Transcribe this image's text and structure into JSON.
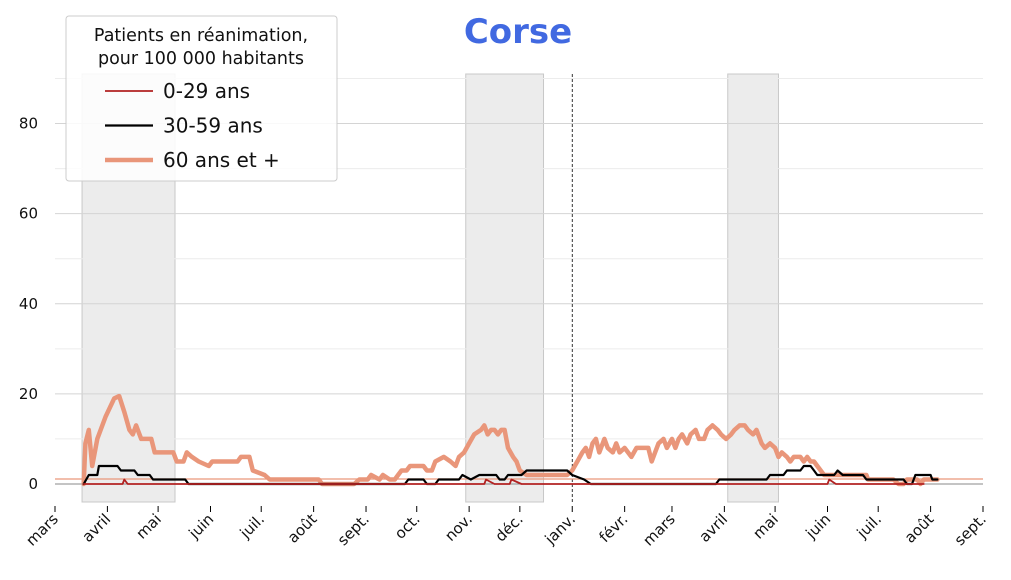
{
  "chart_data": {
    "type": "line",
    "title": "Corse",
    "title_color": "#4169e1",
    "xlabel": "",
    "ylabel": "",
    "x_range": [
      "2020-03-01",
      "2021-09-01"
    ],
    "ylim": [
      -4,
      91
    ],
    "y_ticks": [
      0,
      20,
      40,
      60,
      80
    ],
    "x_ticks": [
      {
        "date": "2020-03-01",
        "label": "mars"
      },
      {
        "date": "2020-04-01",
        "label": "avril"
      },
      {
        "date": "2020-05-01",
        "label": "mai"
      },
      {
        "date": "2020-06-01",
        "label": "juin"
      },
      {
        "date": "2020-07-01",
        "label": "juil."
      },
      {
        "date": "2020-08-01",
        "label": "août"
      },
      {
        "date": "2020-09-01",
        "label": "sept."
      },
      {
        "date": "2020-10-01",
        "label": "oct."
      },
      {
        "date": "2020-11-01",
        "label": "nov."
      },
      {
        "date": "2020-12-01",
        "label": "déc."
      },
      {
        "date": "2021-01-01",
        "label": "janv."
      },
      {
        "date": "2021-02-01",
        "label": "févr."
      },
      {
        "date": "2021-03-01",
        "label": "mars"
      },
      {
        "date": "2021-04-01",
        "label": "avril"
      },
      {
        "date": "2021-05-01",
        "label": "mai"
      },
      {
        "date": "2021-06-01",
        "label": "juin"
      },
      {
        "date": "2021-07-01",
        "label": "juil."
      },
      {
        "date": "2021-08-01",
        "label": "août"
      },
      {
        "date": "2021-09-01",
        "label": "sept."
      }
    ],
    "grid": true,
    "legend": {
      "title": "Patients en réanimation,\npour 100 000 habitants",
      "placement": "top-left"
    },
    "shaded_periods": [
      {
        "start": "2020-03-17",
        "end": "2020-05-11"
      },
      {
        "start": "2020-10-30",
        "end": "2020-12-15"
      },
      {
        "start": "2021-04-03",
        "end": "2021-05-03"
      }
    ],
    "vertical_marker": "2021-01-01",
    "reference_line": {
      "y": 1.1,
      "color": "#e9967a"
    },
    "series": [
      {
        "name": "0-29 ans",
        "color": "#b22222",
        "points": [
          [
            "2020-03-18",
            0
          ],
          [
            "2020-04-10",
            0
          ],
          [
            "2020-04-11",
            1
          ],
          [
            "2020-04-13",
            0
          ],
          [
            "2020-05-01",
            0
          ],
          [
            "2020-06-15",
            0
          ],
          [
            "2020-08-15",
            0
          ],
          [
            "2020-10-01",
            0
          ],
          [
            "2020-11-10",
            0
          ],
          [
            "2020-11-11",
            1
          ],
          [
            "2020-11-16",
            0
          ],
          [
            "2020-11-25",
            0
          ],
          [
            "2020-11-26",
            1
          ],
          [
            "2020-12-02",
            0
          ],
          [
            "2021-01-01",
            0
          ],
          [
            "2021-02-15",
            0
          ],
          [
            "2021-04-01",
            0
          ],
          [
            "2021-06-01",
            0
          ],
          [
            "2021-06-02",
            1
          ],
          [
            "2021-06-06",
            0
          ],
          [
            "2021-07-28",
            0
          ]
        ]
      },
      {
        "name": "30-59 ans",
        "color": "#000000",
        "points": [
          [
            "2020-03-18",
            0
          ],
          [
            "2020-03-21",
            2
          ],
          [
            "2020-03-26",
            2
          ],
          [
            "2020-03-27",
            4
          ],
          [
            "2020-04-07",
            4
          ],
          [
            "2020-04-09",
            3
          ],
          [
            "2020-04-17",
            3
          ],
          [
            "2020-04-19",
            2
          ],
          [
            "2020-04-26",
            2
          ],
          [
            "2020-04-28",
            1
          ],
          [
            "2020-05-17",
            1
          ],
          [
            "2020-05-19",
            0
          ],
          [
            "2020-09-24",
            0
          ],
          [
            "2020-09-26",
            1
          ],
          [
            "2020-10-05",
            1
          ],
          [
            "2020-10-07",
            0
          ],
          [
            "2020-10-12",
            0
          ],
          [
            "2020-10-14",
            1
          ],
          [
            "2020-10-26",
            1
          ],
          [
            "2020-10-28",
            2
          ],
          [
            "2020-11-02",
            1
          ],
          [
            "2020-11-07",
            2
          ],
          [
            "2020-11-17",
            2
          ],
          [
            "2020-11-19",
            1
          ],
          [
            "2020-11-22",
            1
          ],
          [
            "2020-11-24",
            2
          ],
          [
            "2020-12-02",
            2
          ],
          [
            "2020-12-05",
            3
          ],
          [
            "2020-12-29",
            3
          ],
          [
            "2021-01-01",
            2
          ],
          [
            "2021-01-08",
            1
          ],
          [
            "2021-01-12",
            0
          ],
          [
            "2021-03-27",
            0
          ],
          [
            "2021-03-29",
            1
          ],
          [
            "2021-04-26",
            1
          ],
          [
            "2021-04-28",
            2
          ],
          [
            "2021-05-06",
            2
          ],
          [
            "2021-05-08",
            3
          ],
          [
            "2021-05-16",
            3
          ],
          [
            "2021-05-18",
            4
          ],
          [
            "2021-05-22",
            4
          ],
          [
            "2021-05-24",
            3
          ],
          [
            "2021-05-26",
            2
          ],
          [
            "2021-06-05",
            2
          ],
          [
            "2021-06-07",
            3
          ],
          [
            "2021-06-10",
            2
          ],
          [
            "2021-06-22",
            2
          ],
          [
            "2021-06-24",
            1
          ],
          [
            "2021-07-16",
            1
          ],
          [
            "2021-07-18",
            0
          ],
          [
            "2021-07-21",
            0
          ],
          [
            "2021-07-23",
            2
          ],
          [
            "2021-08-01",
            2
          ],
          [
            "2021-08-02",
            1
          ],
          [
            "2021-08-05",
            1
          ]
        ]
      },
      {
        "name": "60 ans et +",
        "color": "#e9967a",
        "points": [
          [
            "2020-03-18",
            0
          ],
          [
            "2020-03-19",
            9
          ],
          [
            "2020-03-21",
            12
          ],
          [
            "2020-03-23",
            4
          ],
          [
            "2020-03-26",
            10
          ],
          [
            "2020-03-31",
            15
          ],
          [
            "2020-04-05",
            19
          ],
          [
            "2020-04-08",
            19.5
          ],
          [
            "2020-04-11",
            16
          ],
          [
            "2020-04-14",
            12
          ],
          [
            "2020-04-16",
            11
          ],
          [
            "2020-04-18",
            13
          ],
          [
            "2020-04-21",
            10
          ],
          [
            "2020-04-27",
            10
          ],
          [
            "2020-04-29",
            7
          ],
          [
            "2020-05-10",
            7
          ],
          [
            "2020-05-12",
            5
          ],
          [
            "2020-05-16",
            5
          ],
          [
            "2020-05-18",
            7
          ],
          [
            "2020-05-21",
            6
          ],
          [
            "2020-05-25",
            5
          ],
          [
            "2020-05-31",
            4
          ],
          [
            "2020-06-02",
            5
          ],
          [
            "2020-06-17",
            5
          ],
          [
            "2020-06-19",
            6
          ],
          [
            "2020-06-24",
            6
          ],
          [
            "2020-06-26",
            3
          ],
          [
            "2020-07-03",
            2
          ],
          [
            "2020-07-06",
            1
          ],
          [
            "2020-08-04",
            1
          ],
          [
            "2020-08-06",
            0
          ],
          [
            "2020-08-25",
            0
          ],
          [
            "2020-08-28",
            1
          ],
          [
            "2020-09-02",
            1
          ],
          [
            "2020-09-04",
            2
          ],
          [
            "2020-09-09",
            1
          ],
          [
            "2020-09-11",
            2
          ],
          [
            "2020-09-15",
            1
          ],
          [
            "2020-09-18",
            1
          ],
          [
            "2020-09-20",
            2
          ],
          [
            "2020-09-22",
            3
          ],
          [
            "2020-09-25",
            3
          ],
          [
            "2020-09-27",
            4
          ],
          [
            "2020-10-05",
            4
          ],
          [
            "2020-10-07",
            3
          ],
          [
            "2020-10-10",
            3
          ],
          [
            "2020-10-12",
            5
          ],
          [
            "2020-10-17",
            6
          ],
          [
            "2020-10-21",
            5
          ],
          [
            "2020-10-24",
            4
          ],
          [
            "2020-10-26",
            6
          ],
          [
            "2020-10-29",
            7
          ],
          [
            "2020-11-01",
            9
          ],
          [
            "2020-11-04",
            11
          ],
          [
            "2020-11-08",
            12
          ],
          [
            "2020-11-10",
            13
          ],
          [
            "2020-11-12",
            11
          ],
          [
            "2020-11-14",
            12
          ],
          [
            "2020-11-16",
            12
          ],
          [
            "2020-11-18",
            11
          ],
          [
            "2020-11-20",
            12
          ],
          [
            "2020-11-22",
            12
          ],
          [
            "2020-11-24",
            8
          ],
          [
            "2020-11-27",
            6
          ],
          [
            "2020-11-29",
            5
          ],
          [
            "2020-12-01",
            3
          ],
          [
            "2020-12-05",
            2
          ],
          [
            "2020-12-29",
            2
          ],
          [
            "2021-01-01",
            3
          ],
          [
            "2021-01-04",
            5
          ],
          [
            "2021-01-07",
            7
          ],
          [
            "2021-01-09",
            8
          ],
          [
            "2021-01-11",
            6
          ],
          [
            "2021-01-13",
            9
          ],
          [
            "2021-01-15",
            10
          ],
          [
            "2021-01-17",
            7
          ],
          [
            "2021-01-20",
            10
          ],
          [
            "2021-01-22",
            8
          ],
          [
            "2021-01-25",
            7
          ],
          [
            "2021-01-27",
            9
          ],
          [
            "2021-01-29",
            7
          ],
          [
            "2021-02-01",
            8
          ],
          [
            "2021-02-03",
            7
          ],
          [
            "2021-02-05",
            6
          ],
          [
            "2021-02-08",
            8
          ],
          [
            "2021-02-15",
            8
          ],
          [
            "2021-02-17",
            5
          ],
          [
            "2021-02-19",
            7
          ],
          [
            "2021-02-21",
            9
          ],
          [
            "2021-02-24",
            10
          ],
          [
            "2021-02-26",
            8
          ],
          [
            "2021-03-01",
            10
          ],
          [
            "2021-03-03",
            8
          ],
          [
            "2021-03-05",
            10
          ],
          [
            "2021-03-07",
            11
          ],
          [
            "2021-03-10",
            9
          ],
          [
            "2021-03-12",
            11
          ],
          [
            "2021-03-15",
            12
          ],
          [
            "2021-03-17",
            10
          ],
          [
            "2021-03-20",
            10
          ],
          [
            "2021-03-22",
            12
          ],
          [
            "2021-03-25",
            13
          ],
          [
            "2021-03-28",
            12
          ],
          [
            "2021-03-30",
            11
          ],
          [
            "2021-04-02",
            10
          ],
          [
            "2021-04-05",
            11
          ],
          [
            "2021-04-07",
            12
          ],
          [
            "2021-04-10",
            13
          ],
          [
            "2021-04-13",
            13
          ],
          [
            "2021-04-15",
            12
          ],
          [
            "2021-04-18",
            11
          ],
          [
            "2021-04-20",
            12
          ],
          [
            "2021-04-23",
            9
          ],
          [
            "2021-04-25",
            8
          ],
          [
            "2021-04-28",
            9
          ],
          [
            "2021-05-01",
            8
          ],
          [
            "2021-05-03",
            6
          ],
          [
            "2021-05-05",
            7
          ],
          [
            "2021-05-08",
            6
          ],
          [
            "2021-05-10",
            5
          ],
          [
            "2021-05-12",
            6
          ],
          [
            "2021-05-16",
            6
          ],
          [
            "2021-05-18",
            5
          ],
          [
            "2021-05-20",
            6
          ],
          [
            "2021-05-22",
            5
          ],
          [
            "2021-05-24",
            5
          ],
          [
            "2021-05-26",
            4
          ],
          [
            "2021-05-28",
            3
          ],
          [
            "2021-05-30",
            2
          ],
          [
            "2021-06-05",
            2
          ],
          [
            "2021-06-10",
            2
          ],
          [
            "2021-06-15",
            2
          ],
          [
            "2021-06-20",
            2
          ],
          [
            "2021-06-24",
            2
          ],
          [
            "2021-06-25",
            1
          ],
          [
            "2021-07-01",
            1
          ],
          [
            "2021-07-05",
            1
          ],
          [
            "2021-07-10",
            1
          ],
          [
            "2021-07-13",
            0
          ],
          [
            "2021-07-16",
            0
          ],
          [
            "2021-07-18",
            1
          ],
          [
            "2021-07-24",
            1
          ],
          [
            "2021-07-26",
            0
          ],
          [
            "2021-07-28",
            1
          ],
          [
            "2021-08-05",
            1
          ]
        ]
      }
    ]
  }
}
